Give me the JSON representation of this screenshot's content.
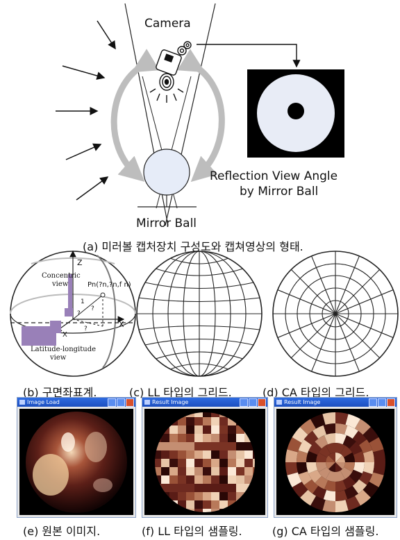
{
  "diagram_a": {
    "camera_label": "Camera",
    "mirror_ball_label": "Mirror Ball",
    "reflection_line1": "Reflection View Angle",
    "reflection_line2": "by Mirror Ball",
    "caption": "(a) 미러볼 캡처장치 구성도와 캡쳐영상의 형태."
  },
  "diagram_b": {
    "concentric_line1": "Concentric",
    "concentric_line2": "view",
    "latlong_line1": "Latitude-longitude",
    "latlong_line2": "view",
    "z_label": "Z",
    "x_label": "X",
    "x_label2": "X",
    "pn_label": "Pn(?n,?n,f n)",
    "q1": "?",
    "q2": "?",
    "q3": "?",
    "one": "1",
    "caption": "(b) 구면좌표계."
  },
  "grid_c": {
    "caption": "(c) LL 타입의 그리드."
  },
  "grid_d": {
    "caption": "(d) CA 타입의 그리드."
  },
  "windows": [
    {
      "title": "Image Load",
      "caption": "(e) 원본 이미지."
    },
    {
      "title": "Result Image",
      "caption": "(f) LL 타입의 샘플링."
    },
    {
      "title": "Result Image",
      "caption": "(g) CA 타입의 샘플링."
    }
  ]
}
